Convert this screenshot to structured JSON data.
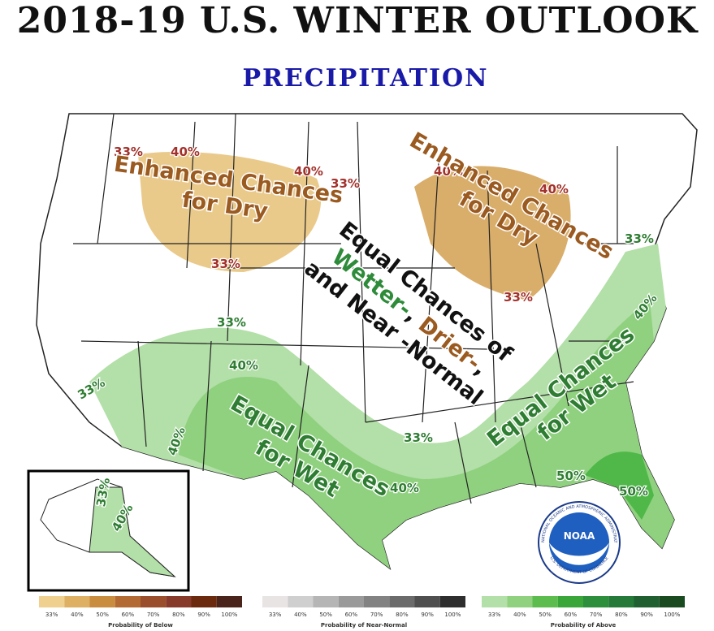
{
  "header": {
    "title": "2018-19 U.S. WINTER OUTLOOK",
    "subtitle": "PRECIPITATION"
  },
  "map": {
    "annotations": [
      {
        "lines": [
          [
            "Enhanced Chances"
          ],
          [
            "for Dry"
          ]
        ]
      },
      {
        "lines": [
          [
            "Enhanced Chances"
          ],
          [
            "for Dry"
          ]
        ]
      },
      {
        "lines": [
          [
            "Equal Chances of"
          ],
          [
            "Wetter-",
            ", ",
            "Drier-",
            ","
          ],
          [
            "and Near -Normal"
          ]
        ]
      },
      {
        "lines": [
          [
            "Equal Chances"
          ],
          [
            "for Wet"
          ]
        ]
      },
      {
        "lines": [
          [
            "Equal Chances"
          ],
          [
            "for Wet"
          ]
        ]
      }
    ],
    "contour_labels": [
      "33%",
      "40%",
      "40%",
      "33%",
      "33%",
      "40%",
      "40%",
      "33%",
      "33%",
      "40%",
      "33%",
      "40%",
      "33%",
      "40%",
      "33%",
      "40%",
      "50%",
      "50%",
      "33%",
      "40%"
    ]
  },
  "legend": [
    {
      "title": "Probability of Below",
      "labels": [
        "33%",
        "40%",
        "50%",
        "60%",
        "70%",
        "80%",
        "90%",
        "100%"
      ],
      "colors": [
        "#f0d08e",
        "#ddb064",
        "#c98d3f",
        "#b36a33",
        "#9a4e2c",
        "#873a2a",
        "#6b2a0e",
        "#4a231b"
      ]
    },
    {
      "title": "Probability of Near-Normal",
      "labels": [
        "33%",
        "40%",
        "50%",
        "60%",
        "70%",
        "80%",
        "90%",
        "100%"
      ],
      "colors": [
        "#e8e4e4",
        "#cfcfcf",
        "#b5b5b5",
        "#9a9a9a",
        "#828282",
        "#6b6b6b",
        "#4f4f4f",
        "#2e2e2e"
      ]
    },
    {
      "title": "Probability of Above",
      "labels": [
        "33%",
        "40%",
        "50%",
        "60%",
        "70%",
        "80%",
        "90%",
        "100%"
      ],
      "colors": [
        "#b3dfa8",
        "#8fd17f",
        "#5cbd4e",
        "#3aa63a",
        "#2d8f3c",
        "#257a3a",
        "#1f5f30",
        "#1a4a20"
      ]
    }
  ],
  "logo": {
    "text": "NOAA",
    "ring": "NATIONAL OCEANIC AND ATMOSPHERIC ADMINISTRATION",
    "ring2": "U.S. DEPARTMENT OF COMMERCE"
  }
}
